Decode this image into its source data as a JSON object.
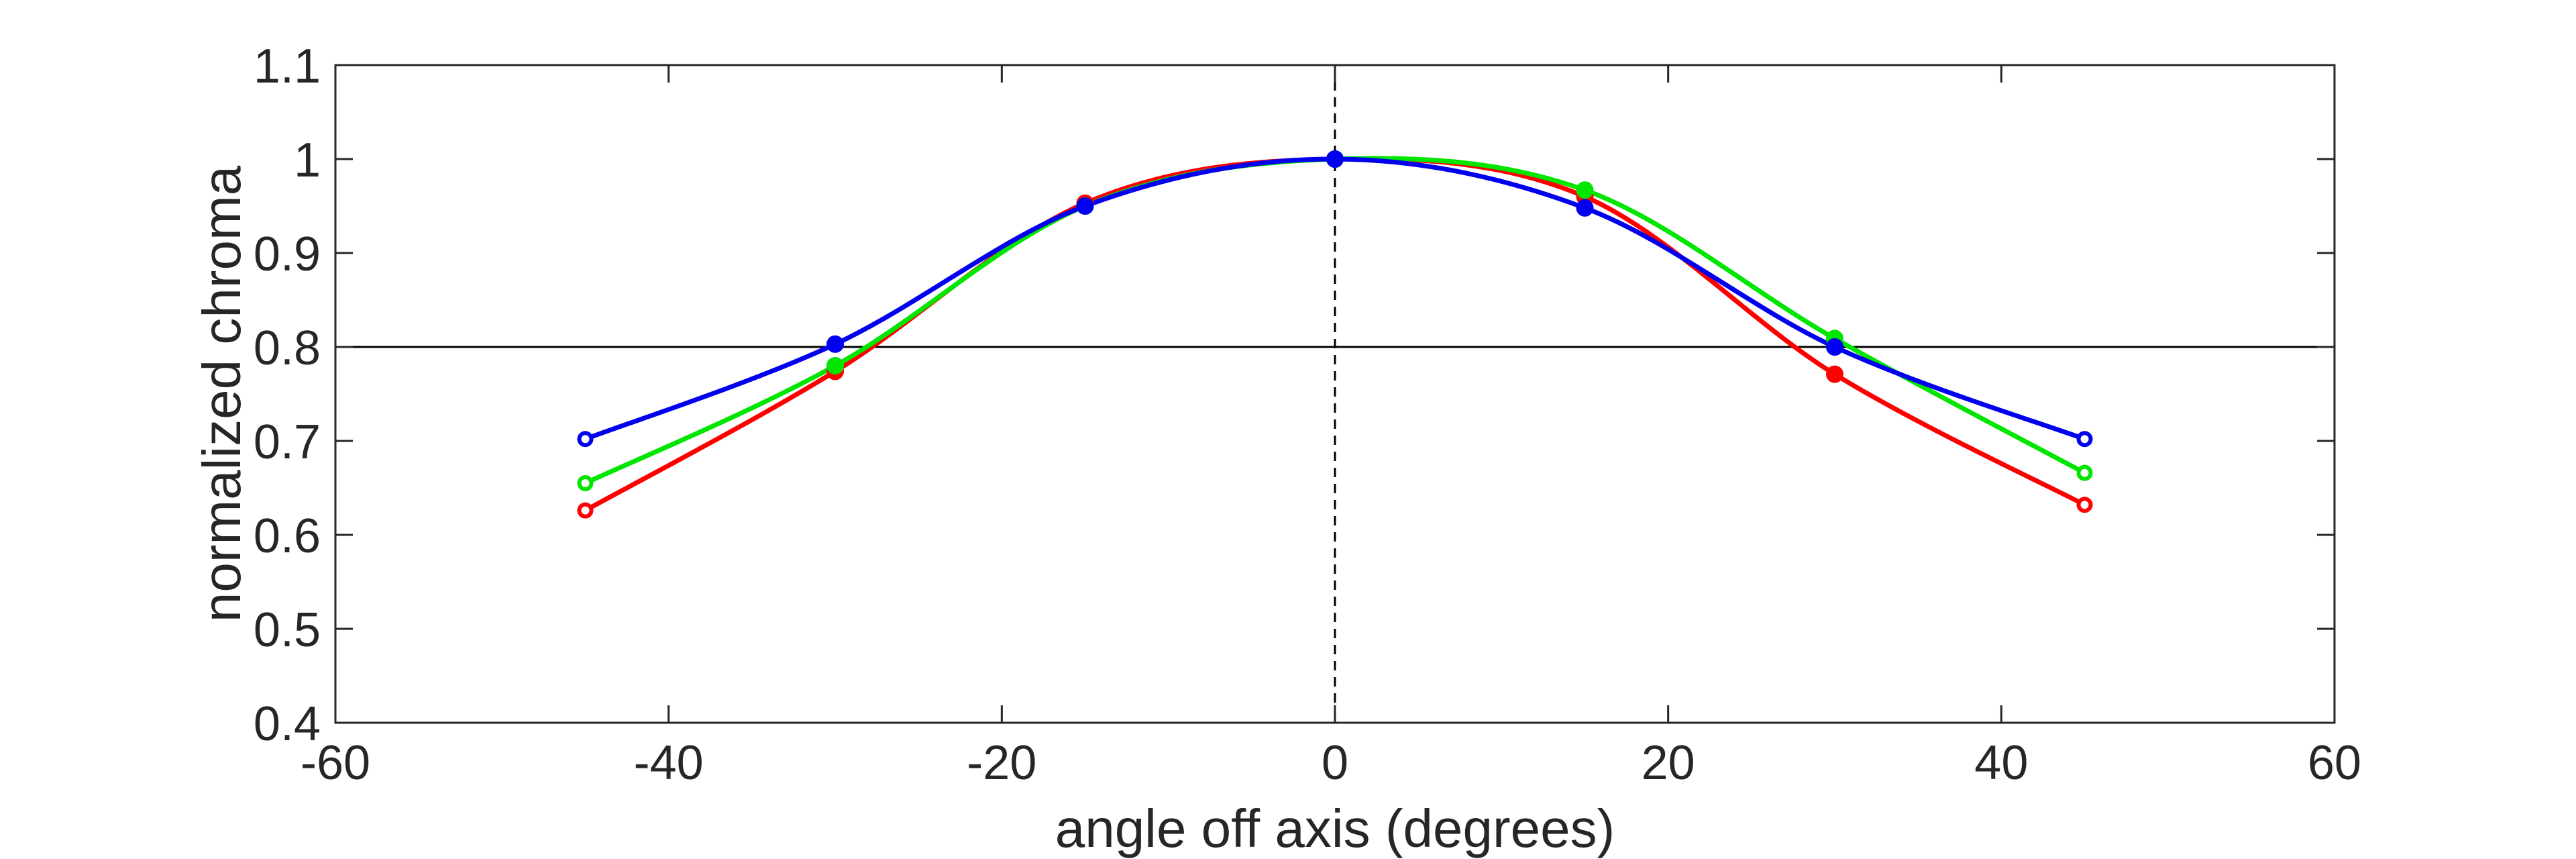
{
  "chart_data": {
    "type": "line",
    "title": "",
    "xlabel": "angle off axis (degrees)",
    "ylabel": "normalized chroma",
    "xlim": [
      -60,
      60
    ],
    "ylim": [
      0.4,
      1.1
    ],
    "xticks": [
      -60,
      -40,
      -20,
      0,
      20,
      40,
      60
    ],
    "xtick_labels": [
      "-60",
      "-40",
      "-20",
      "0",
      "20",
      "40",
      "60"
    ],
    "yticks": [
      0.4,
      0.5,
      0.6,
      0.7,
      0.8,
      0.9,
      1.0,
      1.1
    ],
    "ytick_labels": [
      "0.4",
      "0.5",
      "0.6",
      "0.7",
      "0.8",
      "0.9",
      "1",
      "1.1"
    ],
    "grid": false,
    "legend": false,
    "reference_lines": [
      {
        "orientation": "horizontal",
        "value": 0.8,
        "style": "solid",
        "color": "#000000"
      },
      {
        "orientation": "vertical",
        "value": 0,
        "style": "dashed",
        "color": "#000000"
      }
    ],
    "x": [
      -45,
      -30,
      -15,
      0,
      15,
      30,
      45
    ],
    "series": [
      {
        "color": "#ff0000",
        "values": [
          0.626,
          0.774,
          0.953,
          1.0,
          0.96,
          0.771,
          0.632
        ]
      },
      {
        "color": "#00e600",
        "values": [
          0.655,
          0.78,
          0.95,
          1.0,
          0.967,
          0.809,
          0.666
        ]
      },
      {
        "color": "#0000ee",
        "values": [
          0.702,
          0.803,
          0.95,
          1.0,
          0.948,
          0.8,
          0.702
        ]
      }
    ]
  }
}
